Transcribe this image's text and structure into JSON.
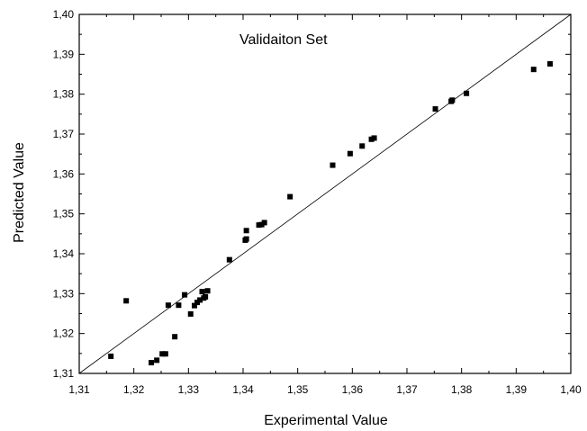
{
  "chart_data": {
    "type": "scatter",
    "title": "Validaiton Set",
    "xlabel": "Experimental Value",
    "ylabel": "Predicted Value",
    "xlim": [
      1.31,
      1.4
    ],
    "ylim": [
      1.31,
      1.4
    ],
    "xticks": [
      "1,31",
      "1,32",
      "1,33",
      "1,34",
      "1,35",
      "1,36",
      "1,37",
      "1,38",
      "1,39",
      "1,40"
    ],
    "yticks": [
      "1,31",
      "1,32",
      "1,33",
      "1,34",
      "1,35",
      "1,36",
      "1,37",
      "1,38",
      "1,39",
      "1,40"
    ],
    "grid": false,
    "reference_line": {
      "type": "y=x",
      "from": [
        1.31,
        1.31
      ],
      "to": [
        1.4,
        1.4
      ]
    },
    "series": [
      {
        "marker": "square",
        "color": "#000000",
        "points": [
          [
            1.3158,
            1.3143
          ],
          [
            1.3186,
            1.3282
          ],
          [
            1.3232,
            1.3127
          ],
          [
            1.3242,
            1.3133
          ],
          [
            1.3252,
            1.3149
          ],
          [
            1.3258,
            1.3149
          ],
          [
            1.3263,
            1.3271
          ],
          [
            1.3275,
            1.3192
          ],
          [
            1.3282,
            1.3271
          ],
          [
            1.3293,
            1.3297
          ],
          [
            1.3304,
            1.3249
          ],
          [
            1.3311,
            1.327
          ],
          [
            1.3316,
            1.3278
          ],
          [
            1.3321,
            1.3284
          ],
          [
            1.3325,
            1.3305
          ],
          [
            1.3328,
            1.3289
          ],
          [
            1.3331,
            1.3292
          ],
          [
            1.3335,
            1.3307
          ],
          [
            1.3375,
            1.3385
          ],
          [
            1.3404,
            1.3434
          ],
          [
            1.3406,
            1.3437
          ],
          [
            1.3406,
            1.3458
          ],
          [
            1.3429,
            1.3472
          ],
          [
            1.3434,
            1.3473
          ],
          [
            1.3439,
            1.3478
          ],
          [
            1.3486,
            1.3543
          ],
          [
            1.3564,
            1.3622
          ],
          [
            1.3596,
            1.3651
          ],
          [
            1.3618,
            1.367
          ],
          [
            1.3635,
            1.3687
          ],
          [
            1.364,
            1.369
          ],
          [
            1.3752,
            1.3763
          ],
          [
            1.3781,
            1.3782
          ],
          [
            1.3783,
            1.3785
          ],
          [
            1.3809,
            1.3802
          ],
          [
            1.3932,
            1.3862
          ],
          [
            1.3962,
            1.3876
          ]
        ]
      }
    ]
  }
}
